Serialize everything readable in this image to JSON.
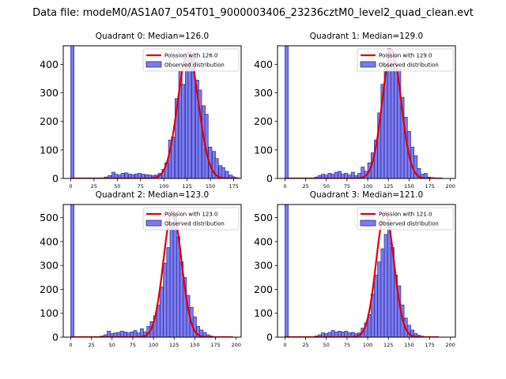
{
  "figure": {
    "suptitle": "Data file: modeM0/AS1A07_054T01_9000003406_23236cztM0_level2_quad_clean.evt"
  },
  "colors": {
    "bar_fill": "#7b7bee",
    "bar_edge": "#2e2e9a",
    "poisson_line": "#e00000",
    "axis": "#000000"
  },
  "chart_data": [
    {
      "type": "bar",
      "title": "Quadrant 0: Median=126.0",
      "median": 126.0,
      "legend": {
        "poisson_label": "Poission with 126.0",
        "observed_label": "Observed distribution",
        "placement": "top-right"
      },
      "xlim": [
        -8,
        183
      ],
      "ylim": [
        0,
        465
      ],
      "xticks": [
        0,
        25,
        50,
        75,
        100,
        125,
        150,
        175
      ],
      "yticks": [
        0,
        100,
        200,
        300,
        400
      ],
      "bin_width": 3.6,
      "bins": [
        [
          0,
          465
        ],
        [
          36,
          5
        ],
        [
          40,
          10
        ],
        [
          44,
          22
        ],
        [
          47,
          15
        ],
        [
          51,
          12
        ],
        [
          54,
          18
        ],
        [
          58,
          20
        ],
        [
          62,
          15
        ],
        [
          65,
          13
        ],
        [
          69,
          16
        ],
        [
          72,
          18
        ],
        [
          76,
          15
        ],
        [
          80,
          13
        ],
        [
          83,
          12
        ],
        [
          87,
          10
        ],
        [
          90,
          12
        ],
        [
          94,
          18
        ],
        [
          98,
          32
        ],
        [
          101,
          55
        ],
        [
          105,
          135
        ],
        [
          108,
          145
        ],
        [
          112,
          280
        ],
        [
          116,
          375
        ],
        [
          119,
          330
        ],
        [
          123,
          440
        ],
        [
          126,
          445
        ],
        [
          130,
          425
        ],
        [
          134,
          345
        ],
        [
          137,
          310
        ],
        [
          141,
          255
        ],
        [
          144,
          225
        ],
        [
          148,
          110
        ],
        [
          152,
          95
        ],
        [
          155,
          70
        ],
        [
          159,
          45
        ],
        [
          162,
          38
        ],
        [
          166,
          25
        ],
        [
          170,
          12
        ],
        [
          173,
          6
        ],
        [
          177,
          3
        ]
      ],
      "poisson_curve": {
        "mean": 126.0,
        "x_range": [
          0,
          176
        ],
        "peak": 440,
        "sigma": 11.2
      }
    },
    {
      "type": "bar",
      "title": "Quadrant 1: Median=129.0",
      "median": 129.0,
      "legend": {
        "poisson_label": "Poission with 129.0",
        "observed_label": "Observed distribution",
        "placement": "top-right"
      },
      "xlim": [
        -9,
        206
      ],
      "ylim": [
        0,
        465
      ],
      "xticks": [
        0,
        25,
        50,
        75,
        100,
        125,
        150,
        175,
        200
      ],
      "yticks": [
        0,
        100,
        200,
        300,
        400
      ],
      "bin_width": 4,
      "bins": [
        [
          0,
          465
        ],
        [
          36,
          5
        ],
        [
          40,
          10
        ],
        [
          44,
          15
        ],
        [
          48,
          12
        ],
        [
          52,
          18
        ],
        [
          56,
          15
        ],
        [
          60,
          22
        ],
        [
          64,
          25
        ],
        [
          68,
          15
        ],
        [
          72,
          18
        ],
        [
          76,
          12
        ],
        [
          80,
          22
        ],
        [
          84,
          10
        ],
        [
          88,
          18
        ],
        [
          92,
          40
        ],
        [
          96,
          25
        ],
        [
          100,
          55
        ],
        [
          104,
          90
        ],
        [
          108,
          135
        ],
        [
          112,
          230
        ],
        [
          116,
          330
        ],
        [
          120,
          395
        ],
        [
          124,
          455
        ],
        [
          128,
          430
        ],
        [
          132,
          410
        ],
        [
          136,
          385
        ],
        [
          140,
          285
        ],
        [
          144,
          215
        ],
        [
          148,
          165
        ],
        [
          152,
          110
        ],
        [
          156,
          80
        ],
        [
          160,
          35
        ],
        [
          164,
          15
        ],
        [
          168,
          18
        ],
        [
          172,
          5
        ],
        [
          176,
          3
        ]
      ],
      "poisson_curve": {
        "mean": 129.0,
        "x_range": [
          0,
          190
        ],
        "peak": 450,
        "sigma": 11.4
      }
    },
    {
      "type": "bar",
      "title": "Quadrant 2: Median=123.0",
      "median": 123.0,
      "legend": {
        "poisson_label": "Poission with 123.0",
        "observed_label": "Observed distribution",
        "placement": "top-right"
      },
      "xlim": [
        -9,
        206
      ],
      "ylim": [
        0,
        555
      ],
      "xticks": [
        0,
        25,
        50,
        75,
        100,
        125,
        150,
        175,
        200
      ],
      "yticks": [
        0,
        100,
        200,
        300,
        400,
        500
      ],
      "bin_width": 4,
      "bins": [
        [
          0,
          555
        ],
        [
          36,
          5
        ],
        [
          40,
          10
        ],
        [
          44,
          25
        ],
        [
          48,
          15
        ],
        [
          52,
          18
        ],
        [
          56,
          20
        ],
        [
          60,
          25
        ],
        [
          64,
          22
        ],
        [
          68,
          18
        ],
        [
          72,
          22
        ],
        [
          76,
          28
        ],
        [
          80,
          18
        ],
        [
          84,
          35
        ],
        [
          88,
          22
        ],
        [
          92,
          45
        ],
        [
          96,
          65
        ],
        [
          100,
          90
        ],
        [
          104,
          135
        ],
        [
          108,
          210
        ],
        [
          112,
          310
        ],
        [
          116,
          375
        ],
        [
          120,
          470
        ],
        [
          124,
          510
        ],
        [
          128,
          420
        ],
        [
          132,
          315
        ],
        [
          136,
          250
        ],
        [
          140,
          175
        ],
        [
          144,
          125
        ],
        [
          148,
          85
        ],
        [
          152,
          45
        ],
        [
          156,
          30
        ],
        [
          160,
          20
        ],
        [
          164,
          10
        ],
        [
          168,
          5
        ]
      ],
      "poisson_curve": {
        "mean": 123.0,
        "x_range": [
          0,
          196
        ],
        "peak": 525,
        "sigma": 11.0
      }
    },
    {
      "type": "bar",
      "title": "Quadrant 3: Median=121.0",
      "median": 121.0,
      "legend": {
        "poisson_label": "Poission with 121.0",
        "observed_label": "Observed distribution",
        "placement": "top-right"
      },
      "xlim": [
        -9,
        206
      ],
      "ylim": [
        0,
        555
      ],
      "xticks": [
        0,
        25,
        50,
        75,
        100,
        125,
        150,
        175,
        200
      ],
      "yticks": [
        0,
        100,
        200,
        300,
        400,
        500
      ],
      "bin_width": 4,
      "bins": [
        [
          0,
          555
        ],
        [
          36,
          5
        ],
        [
          40,
          10
        ],
        [
          44,
          18
        ],
        [
          48,
          15
        ],
        [
          52,
          20
        ],
        [
          56,
          28
        ],
        [
          60,
          22
        ],
        [
          64,
          25
        ],
        [
          68,
          22
        ],
        [
          72,
          25
        ],
        [
          76,
          18
        ],
        [
          80,
          20
        ],
        [
          84,
          15
        ],
        [
          88,
          18
        ],
        [
          92,
          38
        ],
        [
          96,
          60
        ],
        [
          100,
          95
        ],
        [
          104,
          180
        ],
        [
          108,
          260
        ],
        [
          112,
          315
        ],
        [
          116,
          370
        ],
        [
          120,
          430
        ],
        [
          124,
          495
        ],
        [
          128,
          375
        ],
        [
          132,
          260
        ],
        [
          136,
          215
        ],
        [
          140,
          135
        ],
        [
          144,
          80
        ],
        [
          148,
          50
        ],
        [
          152,
          30
        ],
        [
          156,
          15
        ],
        [
          160,
          8
        ],
        [
          164,
          4
        ]
      ],
      "poisson_curve": {
        "mean": 121.0,
        "x_range": [
          0,
          186
        ],
        "peak": 520,
        "sigma": 10.8
      }
    }
  ]
}
